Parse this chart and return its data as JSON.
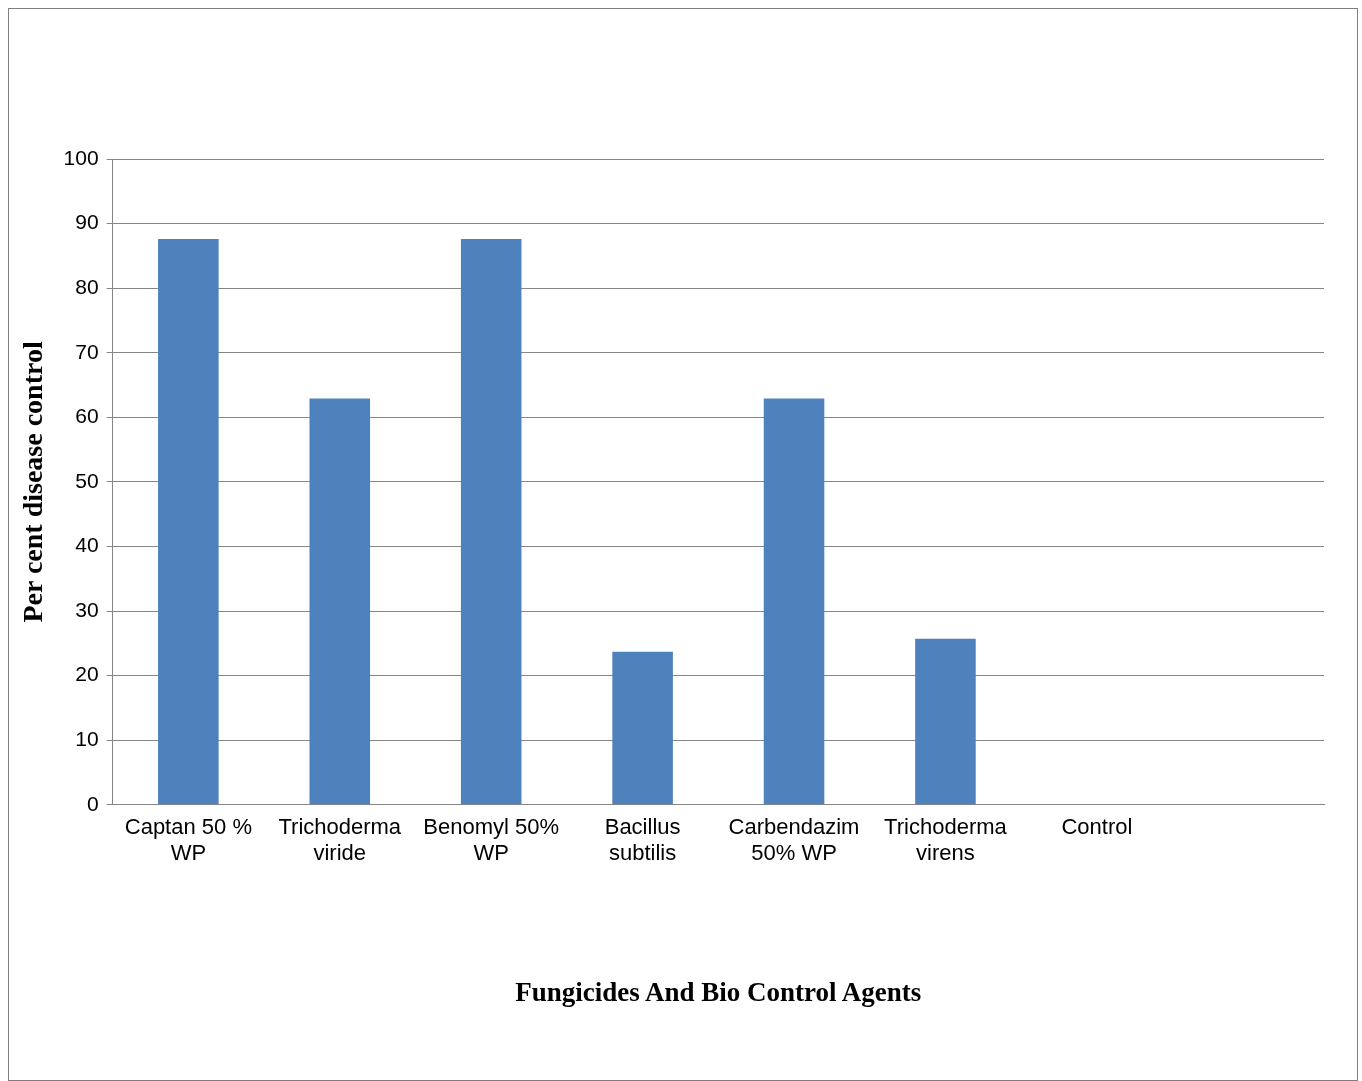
{
  "chart_data": {
    "type": "bar",
    "xlabel": "Fungicides And Bio Control Agents",
    "ylabel": "Per cent disease control",
    "categories": [
      "Captan 50 % WP",
      "Trichoderma viride",
      "Benomyl 50% WP",
      "Bacillus subtilis",
      "Carbendazim 50% WP",
      "Trichoderma virens",
      "Control",
      null
    ],
    "values": [
      87.6,
      62.9,
      87.6,
      23.7,
      62.9,
      25.7,
      0,
      null
    ],
    "color": "#4f81bd",
    "ylim": [
      0,
      100
    ],
    "yticks": [
      0,
      10,
      20,
      30,
      40,
      50,
      60,
      70,
      80,
      90,
      100
    ],
    "grid": "y",
    "legend": false
  }
}
